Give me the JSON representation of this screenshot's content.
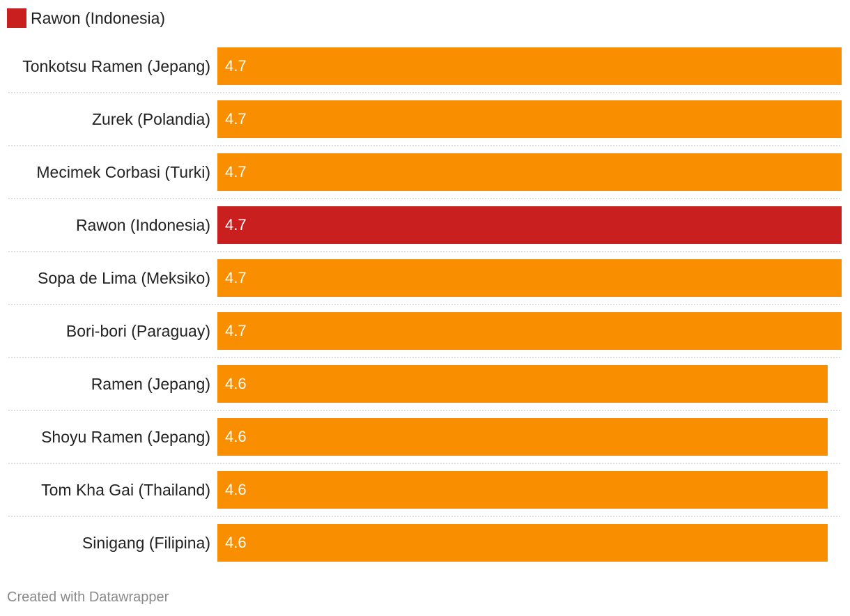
{
  "legend": {
    "label": "Rawon (Indonesia)",
    "color": "#c91f1f"
  },
  "colors": {
    "default_bar": "#f98e00",
    "highlight_bar": "#c91f1f",
    "separator": "#bdbdbd"
  },
  "chart_data": {
    "type": "bar",
    "orientation": "horizontal",
    "categories": [
      "Tonkotsu Ramen (Jepang)",
      "Zurek (Polandia)",
      "Mecimek Corbasi (Turki)",
      "Rawon (Indonesia)",
      "Sopa de Lima (Meksiko)",
      "Bori-bori (Paraguay)",
      "Ramen (Jepang)",
      "Shoyu Ramen (Jepang)",
      "Tom Kha Gai (Thailand)",
      "Sinigang (Filipina)"
    ],
    "values": [
      4.7,
      4.7,
      4.7,
      4.7,
      4.7,
      4.7,
      4.6,
      4.6,
      4.6,
      4.6
    ],
    "value_labels": [
      "4.7",
      "4.7",
      "4.7",
      "4.7",
      "4.7",
      "4.7",
      "4.6",
      "4.6",
      "4.6",
      "4.6"
    ],
    "highlight": [
      "Rawon (Indonesia)"
    ],
    "xlim": [
      0,
      4.7
    ],
    "grid": false,
    "legend_placement": "top-left"
  },
  "footer": {
    "credit": "Created with Datawrapper"
  }
}
